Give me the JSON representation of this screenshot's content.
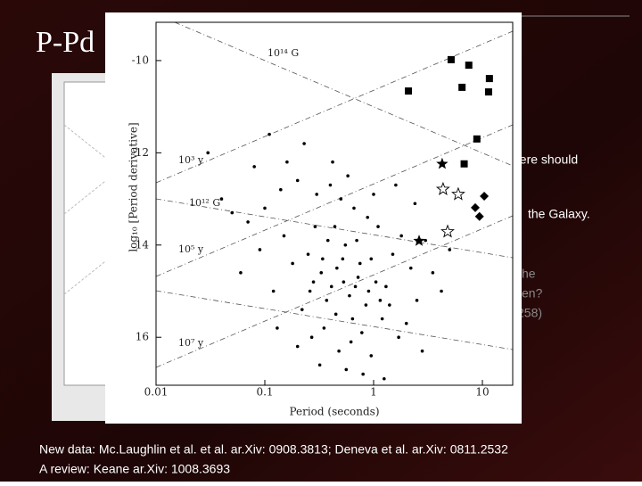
{
  "slide": {
    "title": "P-Pd",
    "fragments": [
      "here should",
      "the Galaxy.",
      "he",
      "ven?",
      "258)"
    ],
    "footer": [
      "New data: Mc.Laughlin et al. et al. ar.Xiv: 0908.3813; Deneva et al. ar.Xiv: 0811.2532",
      "A review: Keane ar.Xiv: 1008.3693"
    ]
  },
  "chart_data": {
    "type": "scatter",
    "xlabel": "Period (seconds)",
    "ylabel": "log₁₀ [Period derivative]",
    "xscale": "log",
    "xlim": [
      0.01,
      19
    ],
    "ylim": [
      -17.04,
      -9.17
    ],
    "xticks": [
      0.01,
      0.1,
      1,
      10
    ],
    "yticks": [
      -10,
      -12,
      {
        "value": -14,
        "label": "14"
      },
      {
        "value": -16,
        "label": "16"
      }
    ],
    "annotations": [
      "10¹⁴ G",
      "10³ y",
      "10¹² G",
      "10⁵ y",
      "10⁷ y"
    ],
    "series": [
      {
        "marker": "circle",
        "color": "#000000",
        "x": [
          0.25,
          0.33,
          0.41,
          0.52,
          0.6,
          0.72,
          0.85,
          1.05,
          1.2,
          0.45,
          0.38,
          0.29,
          0.18,
          0.15,
          0.12,
          0.09,
          0.07,
          0.05,
          0.22,
          0.27,
          0.35,
          0.48,
          0.62,
          0.78,
          0.95,
          1.3,
          1.5,
          1.8,
          2.2,
          1.1,
          0.88,
          0.66,
          0.5,
          0.4,
          0.3,
          0.2,
          0.14,
          0.1,
          0.08,
          0.06,
          0.55,
          0.7,
          0.95,
          1.4,
          1.7,
          2.5,
          3.0,
          3.5,
          4.2,
          0.23,
          0.16,
          0.11,
          0.42,
          0.58,
          1.6,
          2.4,
          0.32,
          0.56,
          0.8,
          1.25,
          0.2,
          0.13,
          0.03,
          0.04,
          0.26,
          0.37,
          0.46,
          0.64,
          0.75,
          0.9,
          1.0,
          1.15,
          0.34,
          0.28,
          0.44,
          0.53,
          0.68,
          2.0,
          2.8,
          5.0
        ],
        "values": [
          -14.2,
          -14.6,
          -14.9,
          -14.3,
          -15.1,
          -14.7,
          -15.3,
          -14.8,
          -15.6,
          -15.5,
          -13.9,
          -13.6,
          -14.4,
          -13.8,
          -15.0,
          -14.1,
          -13.5,
          -13.3,
          -15.4,
          -16.0,
          -15.8,
          -16.3,
          -16.1,
          -15.9,
          -16.4,
          -14.9,
          -14.2,
          -13.8,
          -14.5,
          -13.6,
          -13.4,
          -13.2,
          -13.0,
          -12.7,
          -12.9,
          -12.6,
          -12.8,
          -13.2,
          -12.3,
          -14.6,
          -14.0,
          -13.9,
          -14.3,
          -15.3,
          -16.0,
          -15.2,
          -13.9,
          -14.6,
          -15.0,
          -11.8,
          -12.2,
          -11.6,
          -12.2,
          -12.5,
          -12.7,
          -13.1,
          -16.6,
          -16.7,
          -16.8,
          -16.9,
          -16.2,
          -15.8,
          -12.0,
          -13.0,
          -15.0,
          -15.2,
          -14.5,
          -15.6,
          -14.4,
          -15.0,
          -12.9,
          -15.2,
          -14.3,
          -14.8,
          -13.6,
          -14.8,
          -14.9,
          -15.7,
          -16.3,
          -14.1
        ]
      },
      {
        "marker": "square",
        "color": "#000000",
        "x": [
          2.09,
          5.16,
          7.5,
          6.5,
          11.6,
          11.4,
          8.9,
          6.8
        ],
        "values": [
          -10.66,
          -9.98,
          -10.1,
          -10.58,
          -10.39,
          -10.68,
          -11.7,
          -12.24
        ]
      },
      {
        "marker": "star",
        "color": "#000000",
        "x": [
          4.27,
          2.62
        ],
        "values": [
          -12.24,
          -13.91
        ]
      },
      {
        "marker": "open-star",
        "color": "#000000",
        "x": [
          4.35,
          6.0,
          4.79
        ],
        "values": [
          -12.79,
          -12.9,
          -13.71
        ]
      },
      {
        "marker": "diamond",
        "color": "#000000",
        "x": [
          10.4,
          8.6,
          9.4
        ],
        "values": [
          -12.94,
          -13.19,
          -13.38
        ]
      }
    ]
  }
}
